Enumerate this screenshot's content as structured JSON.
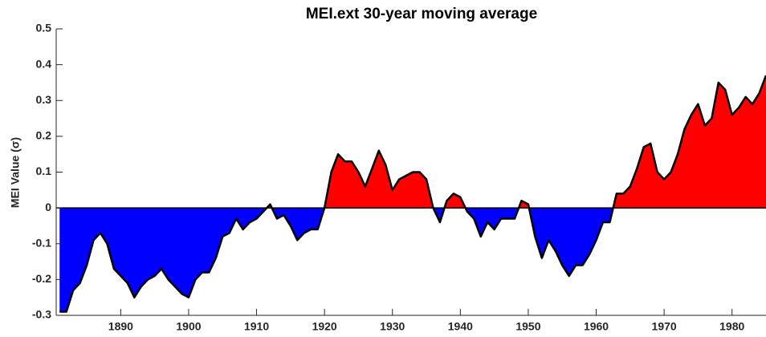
{
  "chart_data": {
    "type": "area",
    "title": "MEI.ext 30-year moving average",
    "y_label": "MEI Value (σ)",
    "x": [
      1881,
      1882,
      1883,
      1884,
      1885,
      1886,
      1887,
      1888,
      1889,
      1890,
      1891,
      1892,
      1893,
      1894,
      1895,
      1896,
      1897,
      1898,
      1899,
      1900,
      1901,
      1902,
      1903,
      1904,
      1905,
      1906,
      1907,
      1908,
      1909,
      1910,
      1911,
      1912,
      1913,
      1914,
      1915,
      1916,
      1917,
      1918,
      1919,
      1920,
      1921,
      1922,
      1923,
      1924,
      1925,
      1926,
      1927,
      1928,
      1929,
      1930,
      1931,
      1932,
      1933,
      1934,
      1935,
      1936,
      1937,
      1938,
      1939,
      1940,
      1941,
      1942,
      1943,
      1944,
      1945,
      1946,
      1947,
      1948,
      1949,
      1950,
      1951,
      1952,
      1953,
      1954,
      1955,
      1956,
      1957,
      1958,
      1959,
      1960,
      1961,
      1962,
      1963,
      1964,
      1965,
      1966,
      1967,
      1968,
      1969,
      1970,
      1971,
      1972,
      1973,
      1974,
      1975,
      1976,
      1977,
      1978,
      1979,
      1980,
      1981,
      1982,
      1983,
      1984,
      1985
    ],
    "values": [
      -0.29,
      -0.29,
      -0.23,
      -0.21,
      -0.16,
      -0.09,
      -0.07,
      -0.1,
      -0.17,
      -0.19,
      -0.21,
      -0.25,
      -0.22,
      -0.2,
      -0.19,
      -0.17,
      -0.2,
      -0.22,
      -0.24,
      -0.25,
      -0.2,
      -0.18,
      -0.18,
      -0.14,
      -0.08,
      -0.07,
      -0.03,
      -0.06,
      -0.04,
      -0.03,
      -0.01,
      0.01,
      -0.03,
      -0.02,
      -0.05,
      -0.09,
      -0.07,
      -0.06,
      -0.06,
      0,
      0.1,
      0.15,
      0.13,
      0.13,
      0.1,
      0.06,
      0.11,
      0.16,
      0.12,
      0.05,
      0.08,
      0.09,
      0.1,
      0.1,
      0.08,
      0,
      -0.04,
      0.02,
      0.04,
      0.03,
      -0.01,
      -0.03,
      -0.08,
      -0.04,
      -0.06,
      -0.03,
      -0.03,
      -0.03,
      0.02,
      0.01,
      -0.08,
      -0.14,
      -0.09,
      -0.12,
      -0.16,
      -0.19,
      -0.16,
      -0.16,
      -0.13,
      -0.09,
      -0.04,
      -0.04,
      0.04,
      0.04,
      0.06,
      0.11,
      0.17,
      0.18,
      0.1,
      0.08,
      0.1,
      0.15,
      0.22,
      0.26,
      0.29,
      0.23,
      0.25,
      0.35,
      0.33,
      0.26,
      0.28,
      0.31,
      0.29,
      0.32,
      0.37
    ],
    "positive_color": "#ff0000",
    "negative_color": "#0000ff",
    "line_color": "#000000",
    "xlim": [
      1880.5,
      1985
    ],
    "ylim": [
      -0.3,
      0.5
    ],
    "xticks": [
      1890,
      1900,
      1910,
      1920,
      1930,
      1940,
      1950,
      1960,
      1970,
      1980
    ],
    "yticks": [
      -0.3,
      -0.2,
      -0.1,
      0,
      0.1,
      0.2,
      0.3,
      0.4,
      0.5
    ]
  }
}
